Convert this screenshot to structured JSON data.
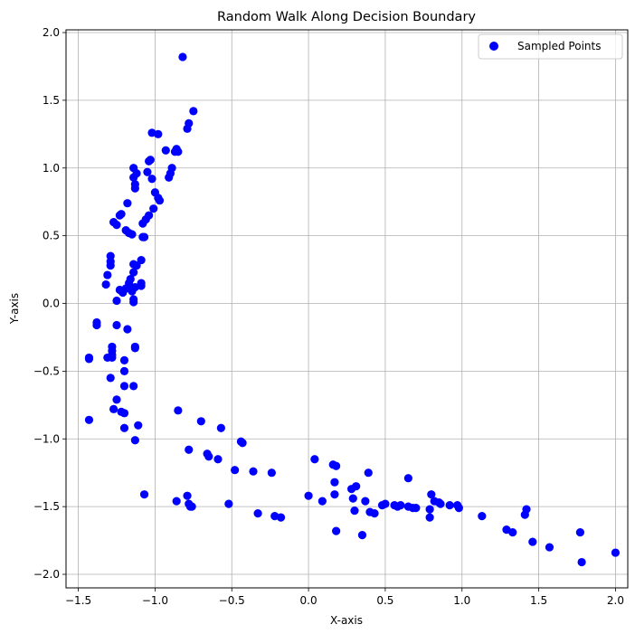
{
  "chart_data": {
    "type": "scatter",
    "title": "Random Walk Along Decision Boundary",
    "xlabel": "X-axis",
    "ylabel": "Y-axis",
    "xlim": [
      -1.58,
      2.08
    ],
    "ylim": [
      -2.1,
      2.02
    ],
    "xticks": [
      -1.5,
      -1.0,
      -0.5,
      0.0,
      0.5,
      1.0,
      1.5,
      2.0
    ],
    "yticks": [
      -2.0,
      -1.5,
      -1.0,
      -0.5,
      0.0,
      0.5,
      1.0,
      1.5,
      2.0
    ],
    "grid": true,
    "legend_position": "top-right",
    "series": [
      {
        "name": "Sampled Points",
        "color": "#0000ff",
        "points": [
          [
            -0.82,
            1.82
          ],
          [
            -0.75,
            1.42
          ],
          [
            -0.78,
            1.33
          ],
          [
            -0.79,
            1.29
          ],
          [
            -0.98,
            1.25
          ],
          [
            -1.02,
            1.26
          ],
          [
            -0.93,
            1.13
          ],
          [
            -0.86,
            1.14
          ],
          [
            -0.85,
            1.12
          ],
          [
            -0.87,
            1.12
          ],
          [
            -1.03,
            1.06
          ],
          [
            -1.04,
            1.05
          ],
          [
            -0.89,
            1.0
          ],
          [
            -0.9,
            0.96
          ],
          [
            -0.91,
            0.93
          ],
          [
            -1.14,
            1.0
          ],
          [
            -1.12,
            0.96
          ],
          [
            -1.14,
            0.93
          ],
          [
            -1.05,
            0.97
          ],
          [
            -1.02,
            0.92
          ],
          [
            -1.13,
            0.88
          ],
          [
            -1.13,
            0.85
          ],
          [
            -1.0,
            0.82
          ],
          [
            -0.98,
            0.78
          ],
          [
            -0.97,
            0.76
          ],
          [
            -1.18,
            0.74
          ],
          [
            -1.01,
            0.7
          ],
          [
            -1.04,
            0.65
          ],
          [
            -1.06,
            0.62
          ],
          [
            -1.08,
            0.59
          ],
          [
            -1.27,
            0.6
          ],
          [
            -1.25,
            0.58
          ],
          [
            -1.22,
            0.66
          ],
          [
            -1.23,
            0.65
          ],
          [
            -1.19,
            0.54
          ],
          [
            -1.17,
            0.52
          ],
          [
            -1.15,
            0.51
          ],
          [
            -1.07,
            0.49
          ],
          [
            -1.08,
            0.49
          ],
          [
            -1.29,
            0.35
          ],
          [
            -1.09,
            0.32
          ],
          [
            -1.29,
            0.31
          ],
          [
            -1.29,
            0.28
          ],
          [
            -1.14,
            0.29
          ],
          [
            -1.12,
            0.28
          ],
          [
            -1.14,
            0.23
          ],
          [
            -1.31,
            0.21
          ],
          [
            -1.16,
            0.18
          ],
          [
            -1.17,
            0.15
          ],
          [
            -1.09,
            0.15
          ],
          [
            -1.09,
            0.13
          ],
          [
            -1.32,
            0.14
          ],
          [
            -1.19,
            0.11
          ],
          [
            -1.23,
            0.1
          ],
          [
            -1.16,
            0.11
          ],
          [
            -1.15,
            0.09
          ],
          [
            -1.13,
            0.12
          ],
          [
            -1.21,
            0.08
          ],
          [
            -1.25,
            0.02
          ],
          [
            -1.14,
            0.03
          ],
          [
            -1.14,
            0.01
          ],
          [
            -1.38,
            -0.14
          ],
          [
            -1.38,
            -0.16
          ],
          [
            -1.25,
            -0.16
          ],
          [
            -1.18,
            -0.19
          ],
          [
            -1.13,
            -0.32
          ],
          [
            -1.13,
            -0.33
          ],
          [
            -1.28,
            -0.32
          ],
          [
            -1.28,
            -0.35
          ],
          [
            -1.28,
            -0.38
          ],
          [
            -1.31,
            -0.4
          ],
          [
            -1.28,
            -0.4
          ],
          [
            -1.43,
            -0.4
          ],
          [
            -1.43,
            -0.41
          ],
          [
            -1.2,
            -0.42
          ],
          [
            -1.2,
            -0.5
          ],
          [
            -1.29,
            -0.55
          ],
          [
            -1.2,
            -0.61
          ],
          [
            -1.14,
            -0.61
          ],
          [
            -1.25,
            -0.71
          ],
          [
            -1.27,
            -0.78
          ],
          [
            -1.22,
            -0.8
          ],
          [
            -1.2,
            -0.81
          ],
          [
            -1.43,
            -0.86
          ],
          [
            -1.2,
            -0.92
          ],
          [
            -1.11,
            -0.9
          ],
          [
            -1.13,
            -1.01
          ],
          [
            -1.07,
            -1.41
          ],
          [
            -0.85,
            -0.79
          ],
          [
            -0.7,
            -0.87
          ],
          [
            -0.57,
            -0.92
          ],
          [
            -0.78,
            -1.08
          ],
          [
            -0.66,
            -1.11
          ],
          [
            -0.65,
            -1.13
          ],
          [
            -0.59,
            -1.15
          ],
          [
            -0.44,
            -1.02
          ],
          [
            -0.43,
            -1.03
          ],
          [
            -0.48,
            -1.23
          ],
          [
            -0.36,
            -1.24
          ],
          [
            -0.24,
            -1.25
          ],
          [
            -0.86,
            -1.46
          ],
          [
            -0.79,
            -1.42
          ],
          [
            -0.78,
            -1.48
          ],
          [
            -0.77,
            -1.5
          ],
          [
            -0.76,
            -1.5
          ],
          [
            -0.52,
            -1.48
          ],
          [
            -0.33,
            -1.55
          ],
          [
            -0.22,
            -1.57
          ],
          [
            -0.18,
            -1.58
          ],
          [
            0.0,
            -1.42
          ],
          [
            0.04,
            -1.15
          ],
          [
            0.09,
            -1.46
          ],
          [
            0.16,
            -1.19
          ],
          [
            0.18,
            -1.2
          ],
          [
            0.17,
            -1.32
          ],
          [
            0.17,
            -1.41
          ],
          [
            0.18,
            -1.68
          ],
          [
            0.28,
            -1.37
          ],
          [
            0.31,
            -1.35
          ],
          [
            0.29,
            -1.44
          ],
          [
            0.3,
            -1.53
          ],
          [
            0.35,
            -1.71
          ],
          [
            0.37,
            -1.46
          ],
          [
            0.39,
            -1.25
          ],
          [
            0.4,
            -1.54
          ],
          [
            0.43,
            -1.55
          ],
          [
            0.48,
            -1.49
          ],
          [
            0.5,
            -1.48
          ],
          [
            0.56,
            -1.49
          ],
          [
            0.58,
            -1.5
          ],
          [
            0.6,
            -1.49
          ],
          [
            0.65,
            -1.5
          ],
          [
            0.65,
            -1.29
          ],
          [
            0.68,
            -1.51
          ],
          [
            0.7,
            -1.51
          ],
          [
            0.79,
            -1.52
          ],
          [
            0.79,
            -1.58
          ],
          [
            0.8,
            -1.41
          ],
          [
            0.82,
            -1.46
          ],
          [
            0.85,
            -1.47
          ],
          [
            0.86,
            -1.48
          ],
          [
            0.92,
            -1.49
          ],
          [
            0.97,
            -1.49
          ],
          [
            0.98,
            -1.51
          ],
          [
            1.13,
            -1.57
          ],
          [
            1.29,
            -1.67
          ],
          [
            1.33,
            -1.69
          ],
          [
            1.41,
            -1.56
          ],
          [
            1.42,
            -1.52
          ],
          [
            1.46,
            -1.76
          ],
          [
            1.57,
            -1.8
          ],
          [
            1.77,
            -1.69
          ],
          [
            1.78,
            -1.91
          ],
          [
            2.0,
            -1.84
          ]
        ]
      }
    ]
  }
}
